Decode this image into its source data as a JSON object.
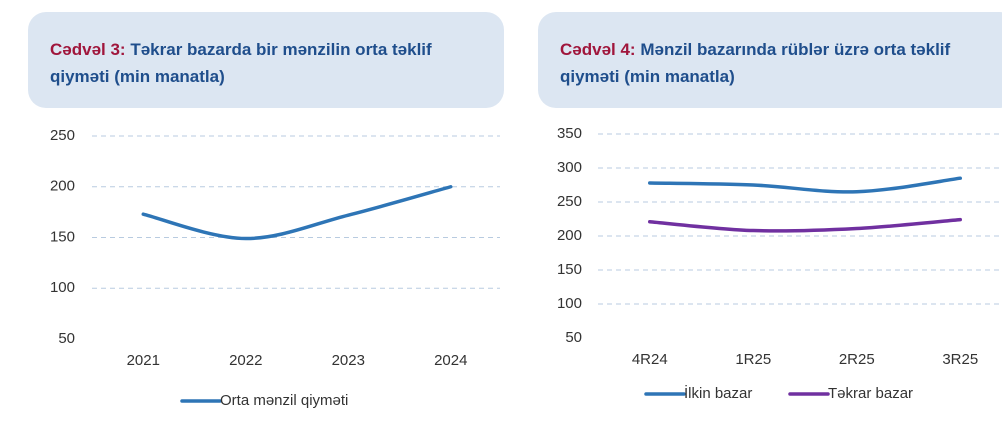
{
  "chart_data": [
    {
      "type": "line",
      "label": "Cədvəl 3:",
      "title": "Təkrar bazarda bir mənzilin orta təklif qiymәti (min manatla)",
      "categories": [
        "2021",
        "2022",
        "2023",
        "2024"
      ],
      "series": [
        {
          "name": "Orta mənzil qiymәti",
          "color": "#2e75b6",
          "values": [
            173,
            149,
            172,
            200
          ]
        }
      ],
      "ylim": [
        50,
        250
      ],
      "yticks": [
        50,
        100,
        150,
        200,
        250
      ],
      "grid": true,
      "legend": "bottom"
    },
    {
      "type": "line",
      "label": "Cədvəl 4:",
      "title": "Mənzil bazarında rüblər üzrə orta təklif qiymәti (min manatla)",
      "categories": [
        "4R24",
        "1R25",
        "2R25",
        "3R25"
      ],
      "series": [
        {
          "name": "İlkin bazar",
          "color": "#2e75b6",
          "values": [
            278,
            275,
            265,
            285
          ]
        },
        {
          "name": "Təkrar bazar",
          "color": "#7030a0",
          "values": [
            221,
            208,
            211,
            224
          ]
        }
      ],
      "ylim": [
        50,
        350
      ],
      "yticks": [
        50,
        100,
        150,
        200,
        250,
        300,
        350
      ],
      "grid": true,
      "legend": "bottom"
    }
  ]
}
